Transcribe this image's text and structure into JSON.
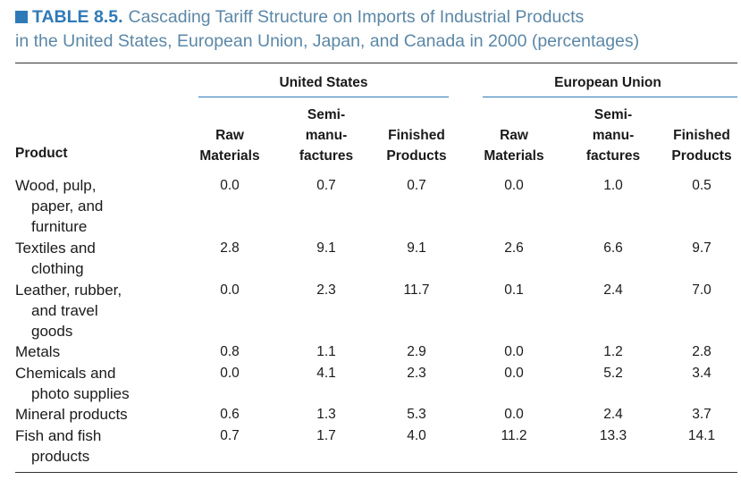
{
  "caption": {
    "table_number": "TABLE 8.5.",
    "line1": "Cascading Tariff Structure on Imports of Industrial Products",
    "line2": "in the United States, European Union, Japan, and Canada in 2000 (percentages)"
  },
  "groups": [
    "United States",
    "European Union"
  ],
  "product_header": "Product",
  "column_headers": [
    [
      "Raw",
      "Materials"
    ],
    [
      "Semi-",
      "manu-",
      "factures"
    ],
    [
      "Finished",
      "Products"
    ],
    [
      "Raw",
      "Materials"
    ],
    [
      "Semi-",
      "manu-",
      "factures"
    ],
    [
      "Finished",
      "Products"
    ]
  ],
  "rows": [
    {
      "product": [
        "Wood, pulp,",
        "paper, and",
        "furniture"
      ],
      "values": [
        "0.0",
        "0.7",
        "0.7",
        "0.0",
        "1.0",
        "0.5"
      ]
    },
    {
      "product": [
        "Textiles and",
        "clothing"
      ],
      "values": [
        "2.8",
        "9.1",
        "9.1",
        "2.6",
        "6.6",
        "9.7"
      ]
    },
    {
      "product": [
        "Leather, rubber,",
        "and travel",
        "goods"
      ],
      "values": [
        "0.0",
        "2.3",
        "11.7",
        "0.1",
        "2.4",
        "7.0"
      ]
    },
    {
      "product": [
        "Metals"
      ],
      "values": [
        "0.8",
        "1.1",
        "2.9",
        "0.0",
        "1.2",
        "2.8"
      ]
    },
    {
      "product": [
        "Chemicals and",
        "photo supplies"
      ],
      "values": [
        "0.0",
        "4.1",
        "2.3",
        "0.0",
        "5.2",
        "3.4"
      ]
    },
    {
      "product": [
        "Mineral products"
      ],
      "values": [
        "0.6",
        "1.3",
        "5.3",
        "0.0",
        "2.4",
        "3.7"
      ]
    },
    {
      "product": [
        "Fish and fish",
        "products"
      ],
      "values": [
        "0.7",
        "1.7",
        "4.0",
        "11.2",
        "13.3",
        "14.1"
      ]
    }
  ]
}
